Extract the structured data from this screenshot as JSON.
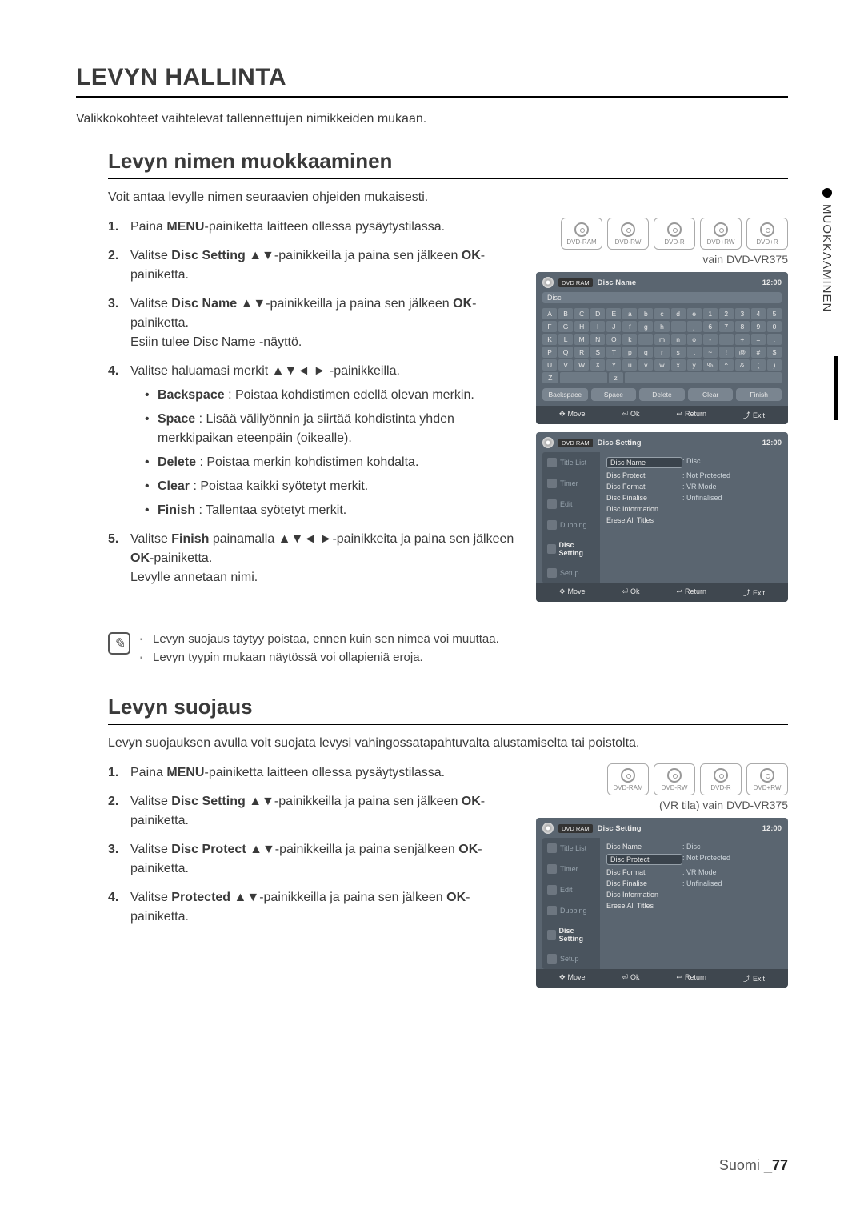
{
  "page": {
    "title": "LEVYN HALLINTA",
    "intro": "Valikkokohteet vaihtelevat tallennettujen nimikkeiden mukaan.",
    "footer_lang": "Suomi",
    "footer_sep": "_",
    "footer_page": "77"
  },
  "side_tab": "MUOKKAAMINEN",
  "disc_badges": {
    "set_full": [
      "DVD-RAM",
      "DVD-RW",
      "DVD-R",
      "DVD+RW",
      "DVD+R"
    ],
    "set_4": [
      "DVD-RAM",
      "DVD-RW",
      "DVD-R",
      "DVD+RW"
    ]
  },
  "captions": {
    "only_vr375": "vain DVD-VR375",
    "vr_mode_vr375": "(VR tila) vain DVD-VR375"
  },
  "section1": {
    "heading": "Levyn nimen muokkaaminen",
    "intro": "Voit antaa levylle nimen seuraavien ohjeiden mukaisesti.",
    "steps": [
      "Paina <b>MENU</b>-painiketta laitteen ollessa pysäytystilassa.",
      "Valitse <b>Disc Setting</b> ▲▼-painikkeilla ja paina sen jälkeen <b>OK</b>-painiketta.",
      "Valitse <b>Disc Name</b> ▲▼-painikkeilla ja paina sen jälkeen <b>OK</b>-painiketta.<br>Esiin tulee Disc Name -näyttö.",
      "Valitse haluamasi merkit ▲▼◄ ► -painikkeilla.",
      "Valitse <b>Finish</b> painamalla ▲▼◄ ►-painikkeita ja paina sen jälkeen <b>OK</b>-painiketta.<br>Levylle annetaan nimi."
    ],
    "sub4": [
      "<b>Backspace</b> : Poistaa kohdistimen edellä olevan merkin.",
      "<b>Space</b> : Lisää välilyönnin ja siirtää kohdistinta yhden merkkipaikan eteenpäin (oikealle).",
      "<b>Delete</b> : Poistaa merkin kohdistimen kohdalta.",
      "<b>Clear</b> : Poistaa kaikki syötetyt merkit.",
      "<b>Finish</b> : Tallentaa syötetyt merkit."
    ],
    "notes": [
      "Levyn suojaus täytyy poistaa, ennen kuin sen nimeä voi muuttaa.",
      "Levyn tyypin mukaan näytössä voi ollapieniä eroja."
    ]
  },
  "section2": {
    "heading": "Levyn suojaus",
    "intro": "Levyn suojauksen avulla voit suojata levysi vahingossatapahtuvalta alustamiselta tai poistolta.",
    "steps": [
      "Paina <b>MENU</b>-painiketta laitteen ollessa pysäytystilassa.",
      "Valitse <b>Disc Setting</b> ▲▼-painikkeilla ja paina sen jälkeen <b>OK</b>-painiketta.",
      "Valitse <b>Disc Protect</b> ▲▼-painikkeilla ja paina senjälkeen <b>OK</b>-painiketta.",
      "Valitse <b>Protected</b> ▲▼-painikkeilla ja paina sen jälkeen <b>OK</b>-painiketta."
    ]
  },
  "ui": {
    "dvd_tag": "DVD RAM",
    "clock": "12:00",
    "disc_name_title": "Disc Name",
    "disc_setting_title": "Disc Setting",
    "sub_label": "Disc",
    "keyboard_rows": [
      [
        "A",
        "B",
        "C",
        "D",
        "E",
        "a",
        "b",
        "c",
        "d",
        "e",
        "1",
        "2",
        "3",
        "4",
        "5"
      ],
      [
        "F",
        "G",
        "H",
        "I",
        "J",
        "f",
        "g",
        "h",
        "i",
        "j",
        "6",
        "7",
        "8",
        "9",
        "0"
      ],
      [
        "K",
        "L",
        "M",
        "N",
        "O",
        "k",
        "l",
        "m",
        "n",
        "o",
        "-",
        "_",
        "+",
        "=",
        "."
      ],
      [
        "P",
        "Q",
        "R",
        "S",
        "T",
        "p",
        "q",
        "r",
        "s",
        "t",
        "~",
        "!",
        "@",
        "#",
        "$"
      ],
      [
        "U",
        "V",
        "W",
        "X",
        "Y",
        "u",
        "v",
        "w",
        "x",
        "y",
        "%",
        "^",
        "&",
        "(",
        ")"
      ]
    ],
    "z_row": [
      "Z",
      " ",
      " ",
      "z",
      " ",
      " ",
      " ",
      " ",
      " ",
      " ",
      " ",
      " ",
      " ",
      " ",
      " "
    ],
    "z_key": "Z",
    "z_key_lower": "z",
    "fn_keys": [
      "Backspace",
      "Space",
      "Delete",
      "Clear",
      "Finish"
    ],
    "nav": {
      "move": "Move",
      "ok": "Ok",
      "ret": "Return",
      "exit": "Exit"
    },
    "side_items": [
      "Title List",
      "Timer",
      "Edit",
      "Dubbing",
      "Disc Setting",
      "Setup"
    ],
    "side_selected_index": 4,
    "disc_rows": [
      {
        "k": "Disc Name",
        "v": ": Disc"
      },
      {
        "k": "Disc Protect",
        "v": ": Not Protected"
      },
      {
        "k": "Disc Format",
        "v": ": VR Mode"
      },
      {
        "k": "Disc Finalise",
        "v": ": Unfinalised"
      },
      {
        "k": "Disc Information",
        "v": ""
      },
      {
        "k": "Erese All Titles",
        "v": ""
      }
    ],
    "selected_row_a": 0,
    "selected_row_b": 1
  }
}
